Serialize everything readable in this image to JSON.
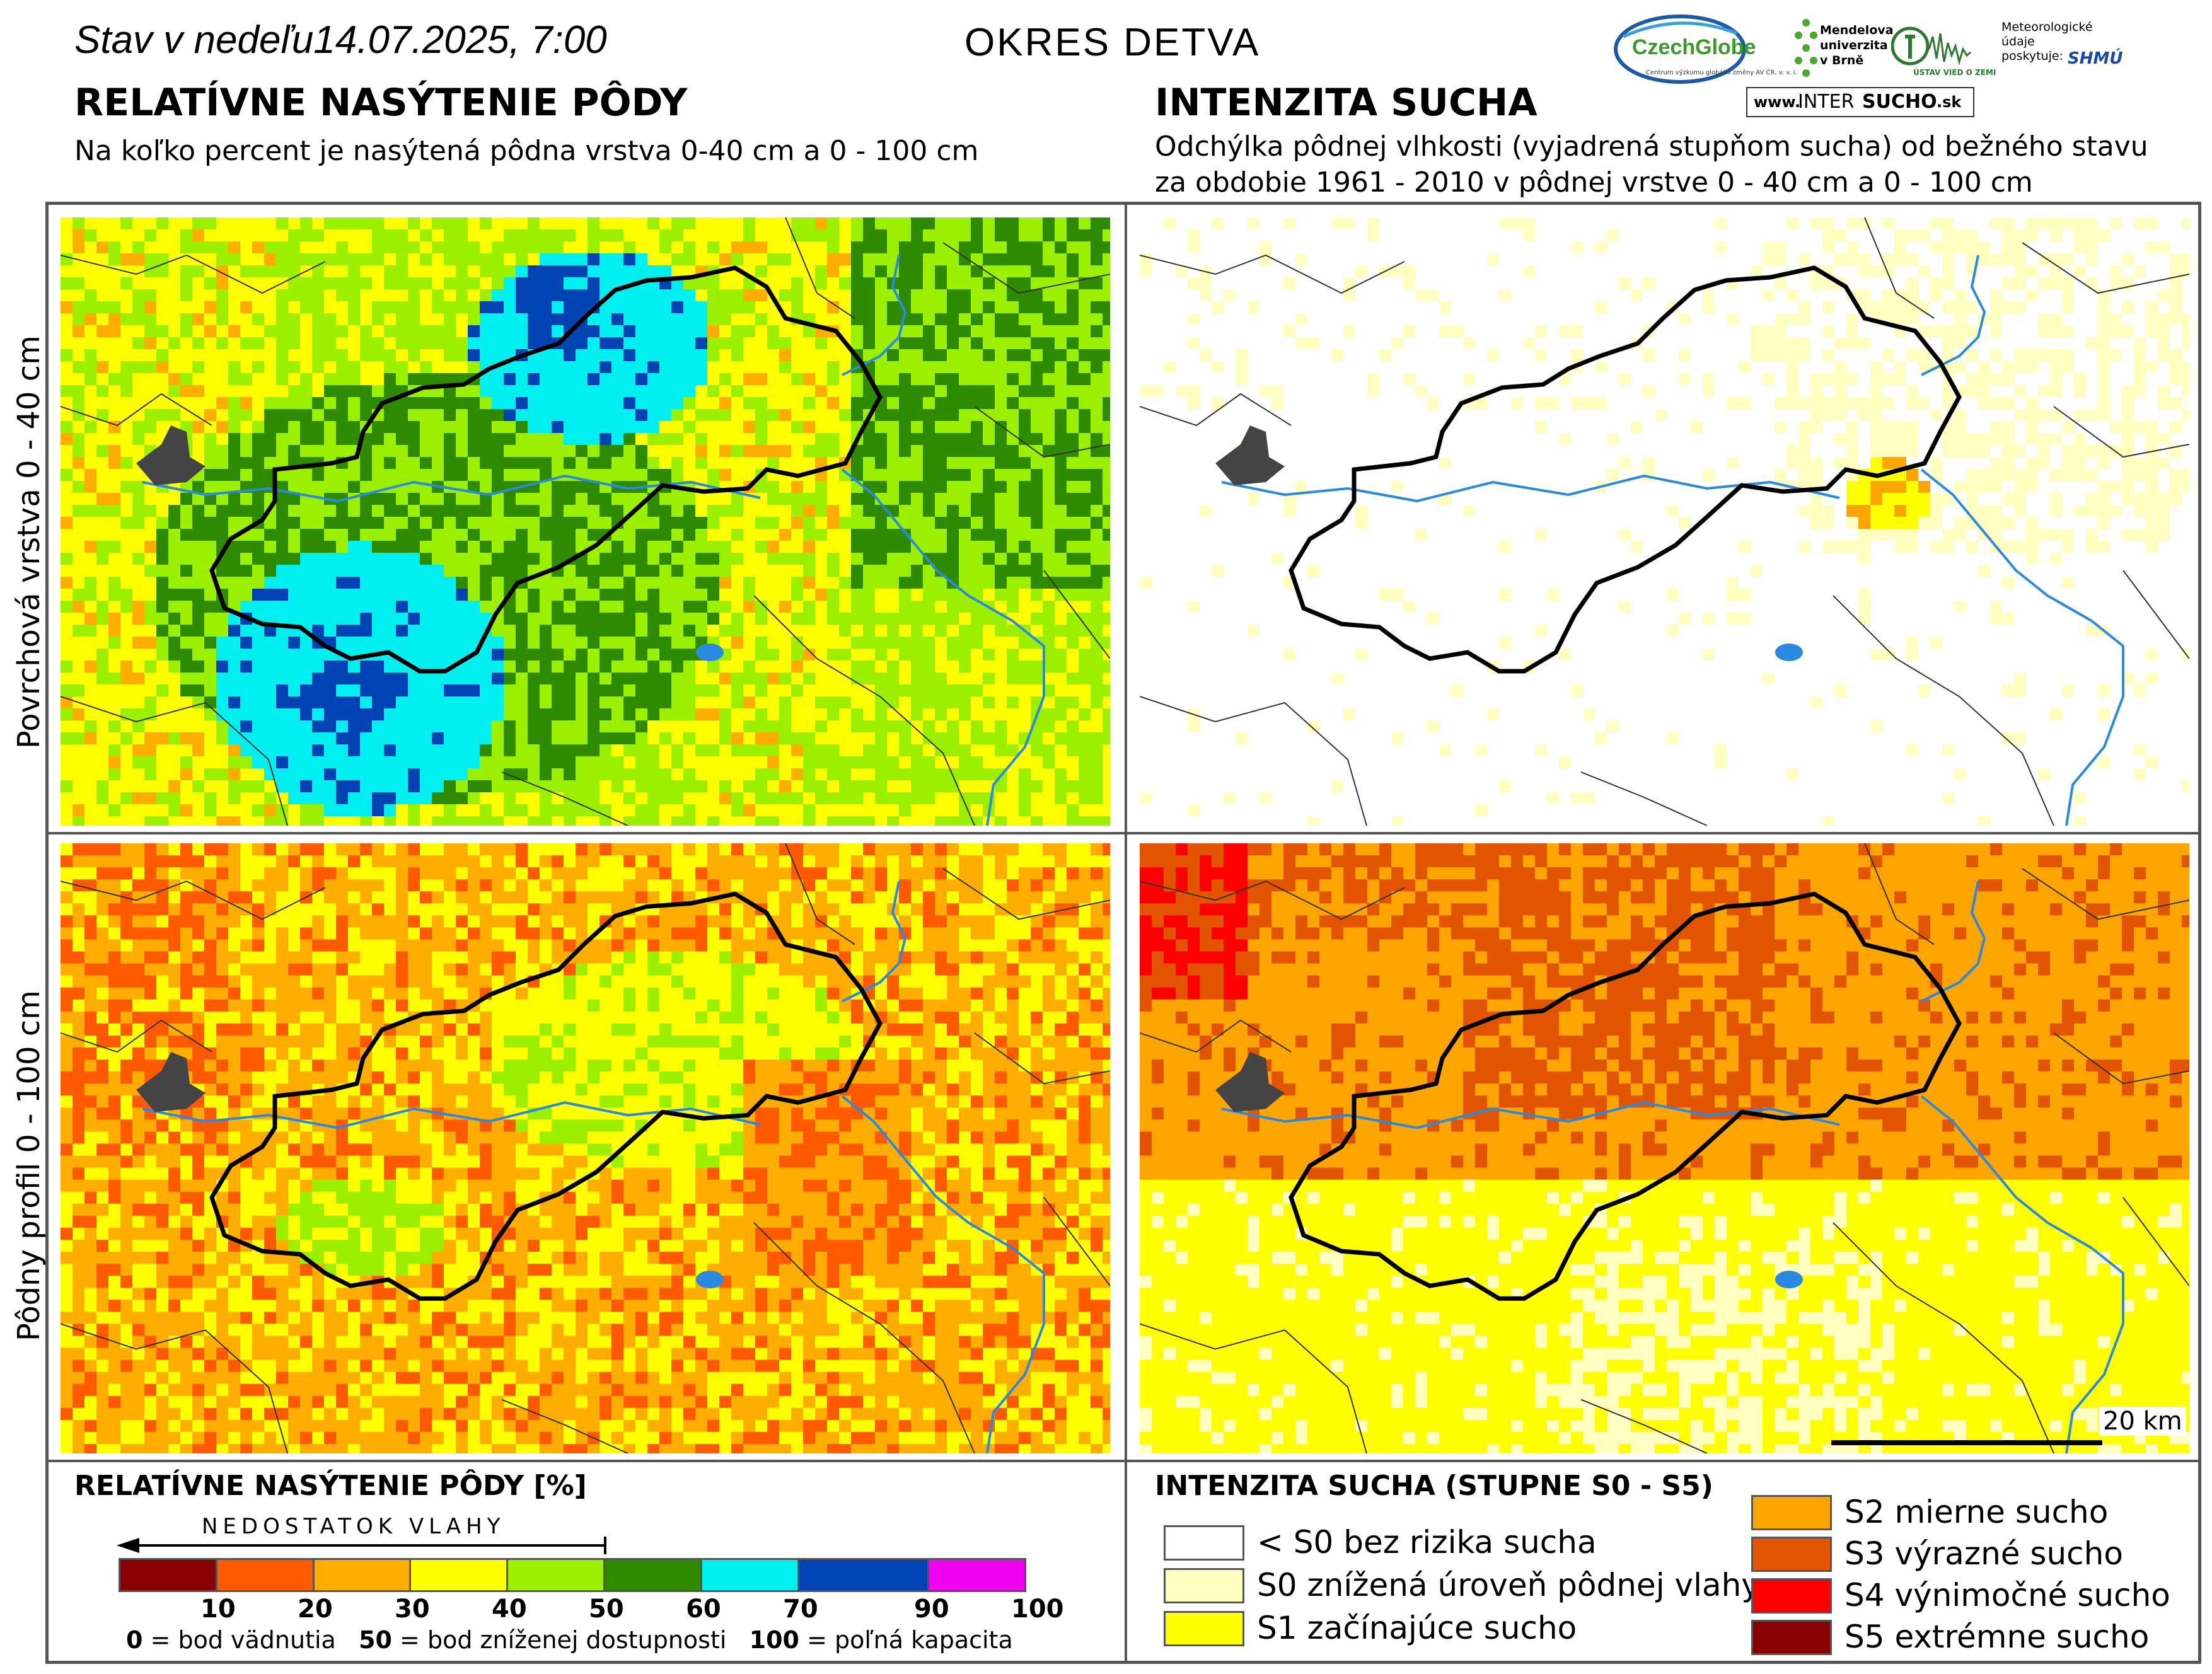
{
  "header": {
    "date_label": "Stav v nedeľu14.07.2025, 7:00",
    "district": "OKRES  DETVA",
    "left_title": "RELATÍVNE NASÝTENIE PÔDY",
    "left_subtitle": "Na koľko percent je nasýtená pôdna vrstva 0-40 cm a 0 - 100 cm",
    "right_title": "INTENZITA SUCHA",
    "right_subtitle_1": "Odchýlka pôdnej vlhkosti (vyjadrená stupňom sucha) od bežného stavu",
    "right_subtitle_2": "za obdobie 1961 - 2010 v pôdnej vrstve 0 - 40 cm a 0 - 100 cm"
  },
  "logos": {
    "czechglobe": "CzechGlobe",
    "czechglobe_sub": "Centrum výzkumu globální změny AV ČR, v. v. i.",
    "mendelu_1": "Mendelova",
    "mendelu_2": "univerzita",
    "mendelu_3": "v Brně",
    "ustav": "ÚSTAV VIED O ZEMI",
    "meteo_1": "Meteorologické",
    "meteo_2": "údaje",
    "meteo_3": "poskytuje:",
    "shmu": "SHMÚ",
    "intersucho_www": "www.",
    "intersucho_inter": "INTER",
    "intersucho_sucho": "SUCHO",
    "intersucho_sk": ".sk"
  },
  "rows": {
    "top_label": "Povrchová vrstva 0 - 40 cm",
    "bottom_label": "Pôdny profil 0 - 100 cm"
  },
  "scalebar": {
    "label": "20 km"
  },
  "legend_saturation": {
    "title": "RELATÍVNE NASÝTENIE PÔDY [%]",
    "arrow_label": "NEDOSTATOK VLAHY",
    "colors": [
      "#8b0000",
      "#ff5a00",
      "#ffae00",
      "#ffff00",
      "#9bf000",
      "#2e8b00",
      "#00f0f0",
      "#0044b4",
      "#f000f0"
    ],
    "ticks": [
      "10",
      "20",
      "30",
      "40",
      "50",
      "60",
      "70",
      "90",
      "100"
    ],
    "foot_0_num": "0",
    "foot_0_text": " = bod vädnutia",
    "foot_50_num": "50",
    "foot_50_text": " = bod zníženej dostupnosti",
    "foot_100_num": "100",
    "foot_100_text": " = poľná kapacita"
  },
  "legend_drought": {
    "title": "INTENZITA SUCHA (STUPNE S0 - S5)",
    "items": [
      {
        "label": "< S0 bez rizika sucha",
        "color": "#ffffff"
      },
      {
        "label": "S0 znížená úroveň pôdnej vlahy",
        "color": "#ffffc0"
      },
      {
        "label": "S1 začínajúce sucho",
        "color": "#ffff00"
      },
      {
        "label": "S2 mierne sucho",
        "color": "#ffa500"
      },
      {
        "label": "S3 výrazné sucho",
        "color": "#e35400"
      },
      {
        "label": "S4 výnimočné sucho",
        "color": "#ff0000"
      },
      {
        "label": "S5 extrémne sucho",
        "color": "#8b0000"
      }
    ]
  }
}
